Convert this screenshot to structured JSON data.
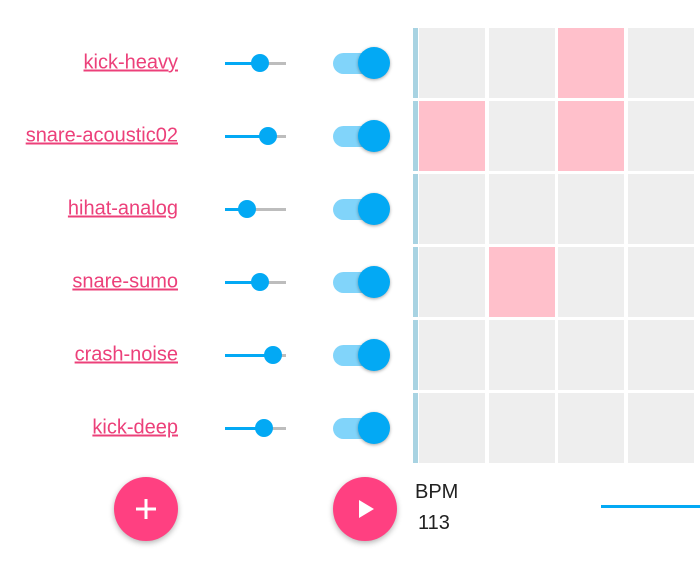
{
  "tracks": [
    {
      "name": "kick-heavy",
      "volume": 0.6,
      "enabled": true,
      "steps": [
        false,
        false,
        true,
        false
      ]
    },
    {
      "name": "snare-acoustic02",
      "volume": 0.8,
      "enabled": true,
      "steps": [
        true,
        false,
        true,
        false
      ]
    },
    {
      "name": "hihat-analog",
      "volume": 0.3,
      "enabled": true,
      "steps": [
        false,
        false,
        false,
        false
      ]
    },
    {
      "name": "snare-sumo",
      "volume": 0.6,
      "enabled": true,
      "steps": [
        false,
        true,
        false,
        false
      ]
    },
    {
      "name": "crash-noise",
      "volume": 0.9,
      "enabled": true,
      "steps": [
        false,
        false,
        false,
        false
      ]
    },
    {
      "name": "kick-deep",
      "volume": 0.7,
      "enabled": true,
      "steps": [
        false,
        false,
        false,
        false
      ]
    }
  ],
  "controls": {
    "add_icon": "plus-icon",
    "play_icon": "play-icon",
    "bpm_label": "BPM",
    "bpm_value": "113"
  },
  "colors": {
    "accent": "#ff4081",
    "link": "#ec407a",
    "primary": "#03a9f4",
    "primary_light": "#81d4fa",
    "step_active": "#ffc0cb",
    "step_inactive": "#eeeeee",
    "row_indicator": "#a8d3e2"
  }
}
